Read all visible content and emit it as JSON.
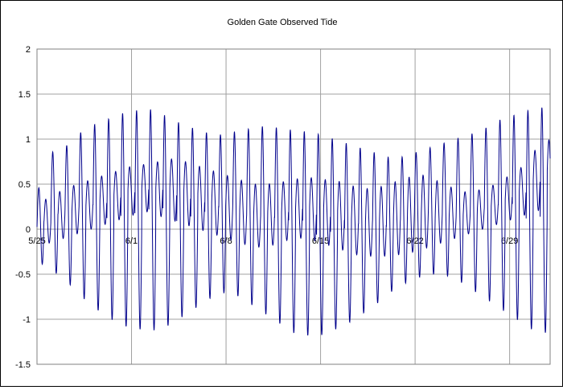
{
  "chart_data": {
    "type": "line",
    "title": "Golden Gate Observed Tide",
    "xlabel": "",
    "ylabel": "",
    "ylim": [
      -1.5,
      2
    ],
    "yticks": [
      -1.5,
      -1,
      -0.5,
      0,
      0.5,
      1,
      1.5,
      2
    ],
    "ytick_labels": [
      "-1.5",
      "-1",
      "-0.5",
      "0",
      "0.5",
      "1",
      "1.5",
      "2"
    ],
    "xlim": [
      "2000-05-25",
      "2000-07-02"
    ],
    "xticks": [
      "2000-05-25",
      "2000-06-01",
      "2000-06-08",
      "2000-06-15",
      "2000-06-22",
      "2000-06-29"
    ],
    "xtick_labels": [
      "5/25",
      "6/1",
      "6/8",
      "6/15",
      "6/22",
      "6/29"
    ],
    "grid": true,
    "legend": "none",
    "series_color": "#00008b",
    "series": [
      {
        "x": [
          "2000-05-25",
          "2000-05-26",
          "2000-05-27",
          "2000-05-28",
          "2000-05-29",
          "2000-05-30",
          "2000-05-31",
          "2000-06-01",
          "2000-06-02",
          "2000-06-03",
          "2000-06-04",
          "2000-06-05",
          "2000-06-06",
          "2000-06-07",
          "2000-06-08",
          "2000-06-09",
          "2000-06-10",
          "2000-06-11",
          "2000-06-12",
          "2000-06-13",
          "2000-06-14",
          "2000-06-15",
          "2000-06-16",
          "2000-06-17",
          "2000-06-18",
          "2000-06-19",
          "2000-06-20",
          "2000-06-21",
          "2000-06-22",
          "2000-06-23",
          "2000-06-24",
          "2000-06-25",
          "2000-06-26",
          "2000-06-27",
          "2000-06-28",
          "2000-06-29",
          "2000-06-30",
          "2000-07-01",
          "2000-07-02"
        ],
        "high_high": [
          0.4,
          0.85,
          0.9,
          1.05,
          1.15,
          1.2,
          1.28,
          1.3,
          1.35,
          1.3,
          1.22,
          1.15,
          1.1,
          1.05,
          1.05,
          1.1,
          1.12,
          1.15,
          1.12,
          1.1,
          1.08,
          1.05,
          1.0,
          0.95,
          0.9,
          0.85,
          0.8,
          0.8,
          0.85,
          0.9,
          0.95,
          1.0,
          1.05,
          1.1,
          1.2,
          1.25,
          1.3,
          1.35,
          1.35
        ],
        "low_high": [
          0.3,
          0.35,
          0.45,
          0.5,
          0.55,
          0.6,
          0.65,
          0.7,
          0.72,
          0.75,
          0.78,
          0.75,
          0.7,
          0.65,
          0.6,
          0.55,
          0.5,
          0.5,
          0.52,
          0.55,
          0.58,
          0.55,
          0.55,
          0.5,
          0.45,
          0.45,
          0.5,
          0.55,
          0.6,
          0.6,
          0.5,
          0.45,
          0.4,
          0.45,
          0.5,
          0.6,
          0.7,
          0.9,
          1.0
        ],
        "high_low": [
          -0.2,
          -0.15,
          -0.1,
          -0.05,
          0.0,
          0.05,
          0.1,
          0.15,
          0.2,
          0.15,
          0.1,
          0.05,
          0.0,
          -0.05,
          -0.1,
          -0.15,
          -0.2,
          -0.2,
          -0.15,
          -0.1,
          -0.1,
          -0.15,
          -0.2,
          -0.25,
          -0.3,
          -0.3,
          -0.3,
          -0.28,
          -0.25,
          -0.2,
          -0.15,
          -0.1,
          -0.05,
          0.0,
          0.05,
          0.1,
          0.15,
          0.2,
          0.25
        ],
        "low_low": [
          -0.35,
          -0.45,
          -0.55,
          -0.7,
          -0.85,
          -0.95,
          -1.05,
          -1.1,
          -1.12,
          -1.12,
          -1.05,
          -0.95,
          -0.85,
          -0.75,
          -0.7,
          -0.75,
          -0.85,
          -0.95,
          -1.05,
          -1.15,
          -1.18,
          -1.18,
          -1.12,
          -1.05,
          -0.95,
          -0.85,
          -0.72,
          -0.62,
          -0.55,
          -0.5,
          -0.5,
          -0.55,
          -0.65,
          -0.75,
          -0.85,
          -0.95,
          -1.05,
          -1.15,
          -1.15
        ]
      }
    ]
  }
}
